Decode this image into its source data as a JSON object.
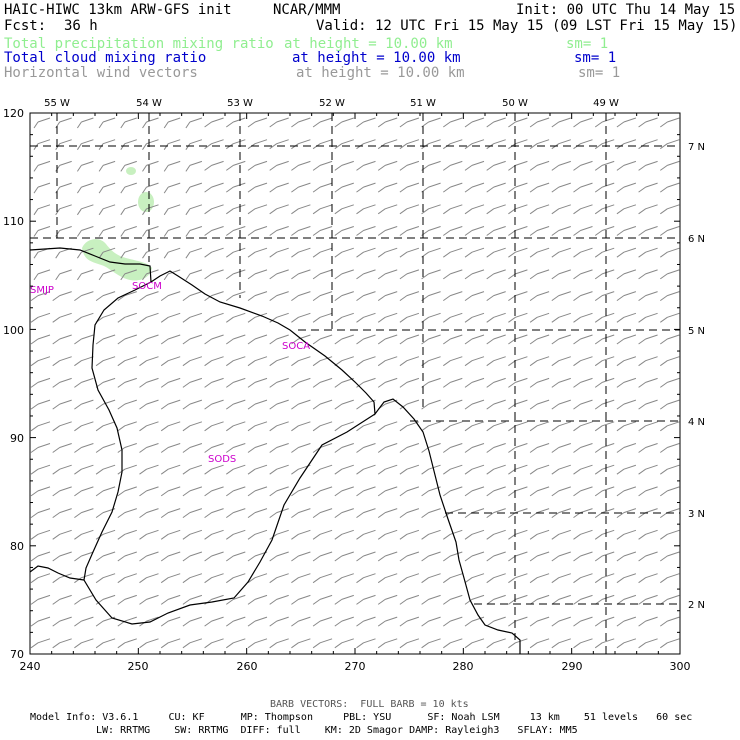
{
  "header": {
    "model_title": "HAIC-HIWC 13km ARW-GFS init",
    "org": "NCAR/MMM",
    "init": "Init: 00 UTC Thu 14 May 15",
    "fcst_label": "Fcst:",
    "fcst_value": "36 h",
    "valid": "Valid: 12 UTC Fri 15 May 15 (09 LST Fri 15 May 15)"
  },
  "fields": [
    {
      "name": "Total precipitation mixing ratio",
      "level": "at height = 10.00 km",
      "sm": "sm= 1",
      "color": "#90ee90"
    },
    {
      "name": "Total cloud mixing ratio",
      "level": "at height = 10.00 km",
      "sm": "sm= 1",
      "color": "#0000cc"
    },
    {
      "name": "Horizontal wind vectors",
      "level": "at height = 10.00 km",
      "sm": "sm= 1",
      "color": "#999999"
    }
  ],
  "map": {
    "x_ticks": [
      "240",
      "250",
      "260",
      "270",
      "280",
      "290",
      "300"
    ],
    "y_ticks": [
      "120",
      "110",
      "100",
      "90",
      "80",
      "70"
    ],
    "lon_labels": [
      "55 W",
      "54 W",
      "53 W",
      "52 W",
      "51 W",
      "50 W",
      "49 W"
    ],
    "lat_labels": [
      "7 N",
      "6 N",
      "5 N",
      "4 N",
      "3 N",
      "2 N"
    ],
    "stations": [
      "SMJP",
      "SOCM",
      "SOCA",
      "SODS"
    ],
    "colors": {
      "coast": "#000000",
      "grid": "#000000",
      "barb": "#888888",
      "station": "#cc00cc",
      "precip": "#c8f0c0"
    }
  },
  "footer": {
    "barb_legend": "BARB VECTORS:  FULL BARB = 10 kts",
    "model_info_1": "Model Info: V3.6.1     CU: KF      MP: Thompson     PBL: YSU      SF: Noah LSM     13 km    51 levels   60 sec",
    "model_info_2": "LW: RRTMG    SW: RRTMG  DIFF: full    KM: 2D Smagor DAMP: Rayleigh3   SFLAY: MM5"
  }
}
